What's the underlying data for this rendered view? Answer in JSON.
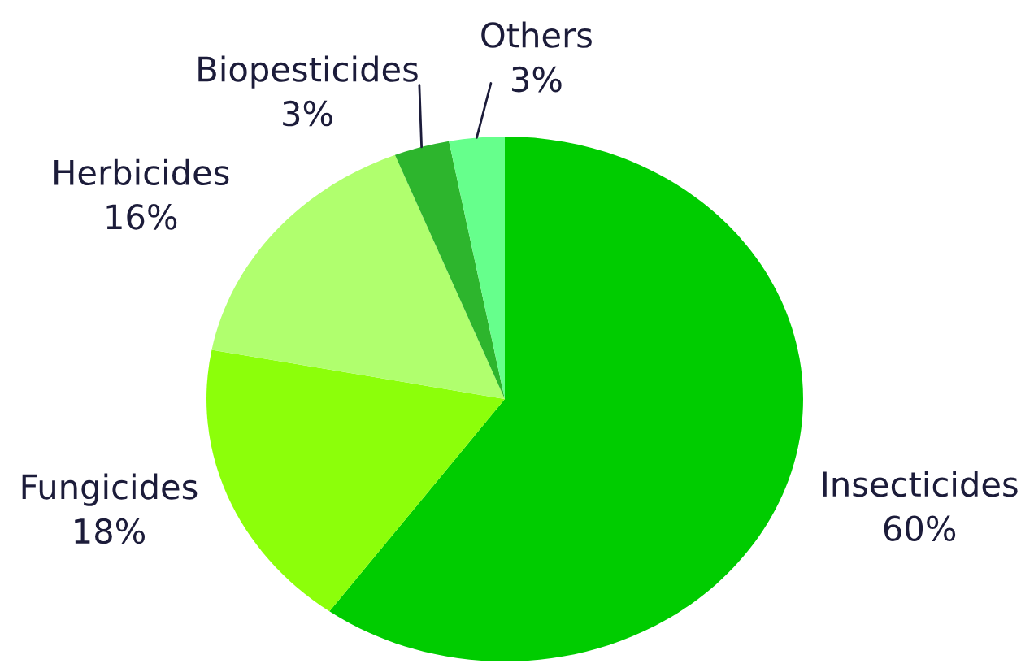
{
  "chart_data": {
    "type": "pie",
    "categories": [
      "Insecticides",
      "Fungicides",
      "Herbicides",
      "Biopesticides",
      "Others"
    ],
    "values": [
      60,
      18,
      16,
      3,
      3
    ],
    "value_labels": [
      "60%",
      "18%",
      "16%",
      "3%",
      "3%"
    ],
    "colors": [
      "#00cc00",
      "#8cff0a",
      "#b0ff6e",
      "#2db52d",
      "#66ff8c"
    ]
  }
}
